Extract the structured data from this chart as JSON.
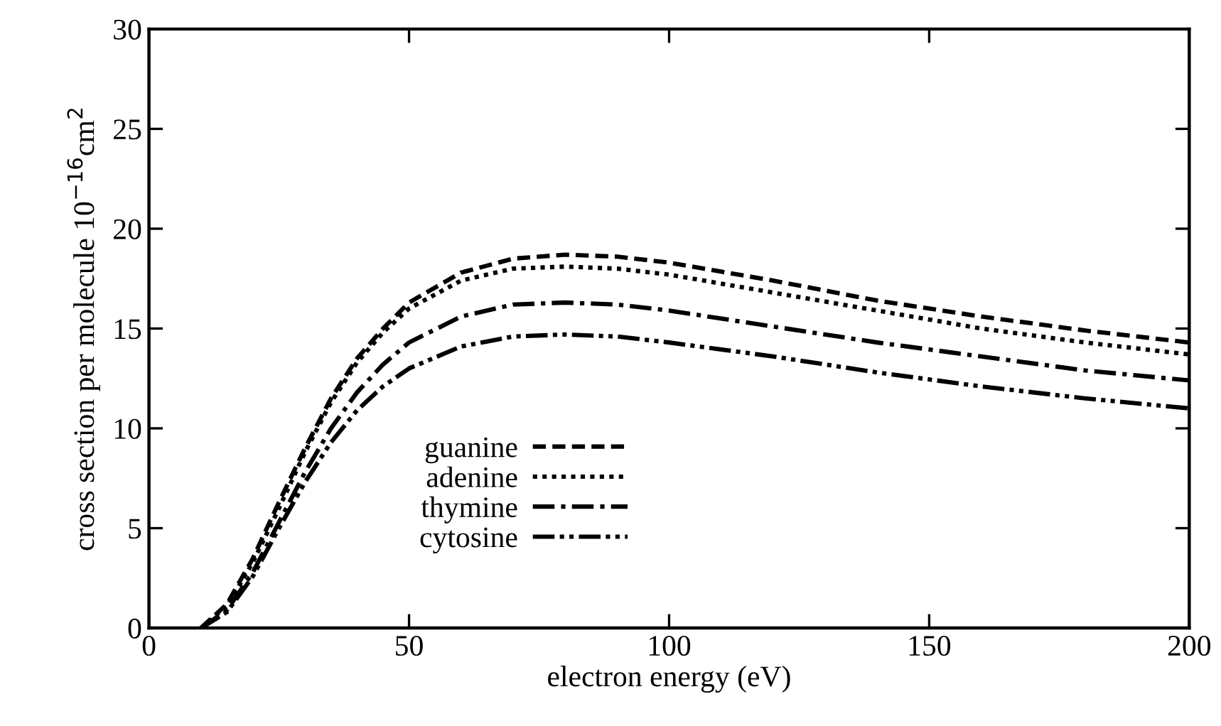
{
  "chart_data": {
    "type": "line",
    "xlabel": "electron energy (eV)",
    "ylabel": "cross section per molecule 10$^{−16}$cm$^{2}$",
    "x": [
      10,
      15,
      20,
      25,
      30,
      35,
      40,
      45,
      50,
      60,
      70,
      80,
      90,
      100,
      120,
      140,
      160,
      180,
      200
    ],
    "series": [
      {
        "name": "guanine",
        "color": "#000000",
        "line_style": "dashed",
        "values": [
          0,
          1.2,
          3.5,
          6.3,
          9.0,
          11.5,
          13.5,
          15.0,
          16.3,
          17.8,
          18.5,
          18.7,
          18.6,
          18.3,
          17.4,
          16.4,
          15.6,
          14.9,
          14.3
        ]
      },
      {
        "name": "adenine",
        "color": "#000000",
        "line_style": "dotted",
        "values": [
          0,
          1.1,
          3.3,
          6.0,
          8.8,
          11.3,
          13.3,
          14.8,
          16.0,
          17.4,
          18.0,
          18.1,
          18.0,
          17.7,
          16.8,
          15.9,
          15.0,
          14.3,
          13.7
        ]
      },
      {
        "name": "thymine",
        "color": "#000000",
        "line_style": "dashdot",
        "values": [
          0,
          0.9,
          2.8,
          5.3,
          7.8,
          10.0,
          11.8,
          13.2,
          14.3,
          15.6,
          16.2,
          16.3,
          16.2,
          15.9,
          15.1,
          14.3,
          13.6,
          12.9,
          12.4
        ]
      },
      {
        "name": "cytosine",
        "color": "#000000",
        "line_style": "dashdotdot",
        "values": [
          0,
          0.8,
          2.6,
          5.0,
          7.3,
          9.3,
          10.9,
          12.1,
          13.0,
          14.1,
          14.6,
          14.7,
          14.6,
          14.3,
          13.6,
          12.8,
          12.1,
          11.5,
          11.0
        ]
      }
    ],
    "xlim": [
      0,
      200
    ],
    "xticks": [
      0,
      50,
      100,
      150,
      200
    ],
    "ylim": [
      0,
      30
    ],
    "yticks": [
      0,
      5,
      10,
      15,
      20,
      25,
      30
    ],
    "legend": "lower center",
    "grid": false,
    "marker": "none"
  }
}
